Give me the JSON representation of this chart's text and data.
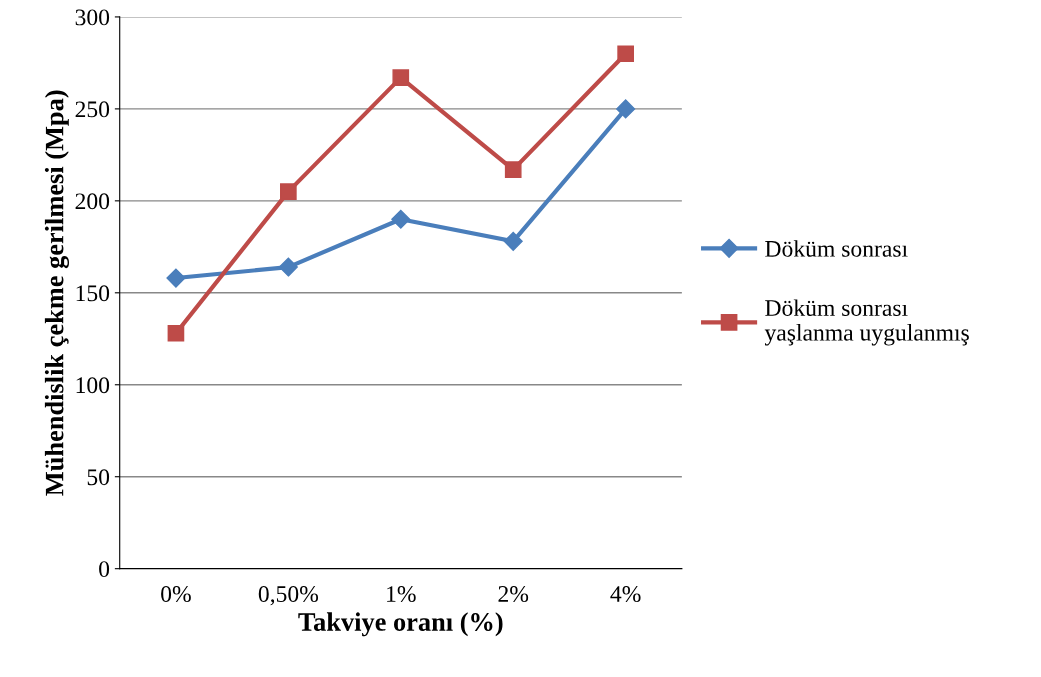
{
  "chart_data": {
    "type": "line",
    "xlabel": "Takviye oranı (%)",
    "ylabel": "Mühendislik çekme gerilmesi (Mpa)",
    "categories": [
      "0%",
      "0,50%",
      "1%",
      "2%",
      "4%"
    ],
    "series": [
      {
        "name": "Döküm sonrası",
        "color": "#4a7ebb",
        "marker": "diamond",
        "values": [
          158,
          164,
          190,
          178,
          250
        ]
      },
      {
        "name": "Döküm sonrası\nyaşlanma uygulanmış",
        "color": "#be4b48",
        "marker": "square",
        "values": [
          128,
          205,
          267,
          217,
          280
        ]
      }
    ],
    "ylim": [
      0,
      300
    ],
    "yticks": [
      0,
      50,
      100,
      150,
      200,
      250,
      300
    ],
    "grid": "y",
    "legend": "right",
    "line_style": "solid"
  }
}
